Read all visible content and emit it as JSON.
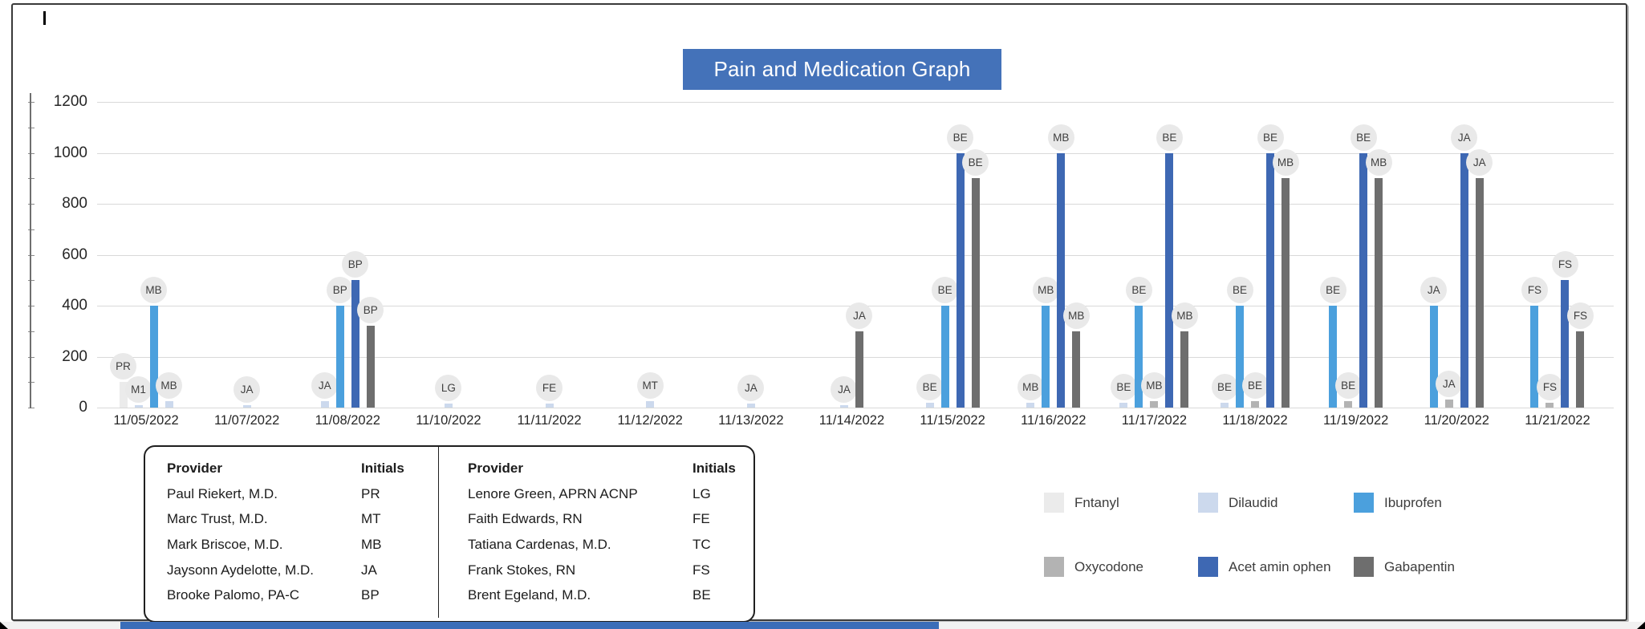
{
  "chart_data": {
    "type": "bar",
    "title": "Pain and Medication Graph",
    "xlabel": "",
    "ylabel": "",
    "ylim": [
      0,
      1200
    ],
    "y_ticks": [
      0,
      200,
      400,
      600,
      800,
      1000,
      1200
    ],
    "y_minor_step": 100,
    "grid": "horizontal",
    "legend_position": "bottom-right",
    "series_legend": [
      {
        "name": "Fntanyl",
        "color": "#ebebeb"
      },
      {
        "name": "Dilaudid",
        "color": "#ccd9ed"
      },
      {
        "name": "Ibuprofen",
        "color": "#4ba0dd"
      },
      {
        "name": "Oxycodone",
        "color": "#b3b3b3"
      },
      {
        "name": "Acet amin ophen",
        "color": "#3e68b3"
      },
      {
        "name": "Gabapentin",
        "color": "#6e6e6e"
      }
    ],
    "groups": [
      {
        "date": "11/05/2022",
        "bars": [
          {
            "series": "Fntanyl",
            "label": "PR",
            "value": 100
          },
          {
            "series": "Dilaudid",
            "label": "M1",
            "value": 10
          },
          {
            "series": "Ibuprofen",
            "label": "MB",
            "value": 400
          },
          {
            "series": "Dilaudid",
            "label": "MB",
            "value": 25
          }
        ]
      },
      {
        "date": "11/07/2022",
        "bars": [
          {
            "series": "Dilaudid",
            "label": "JA",
            "value": 10
          }
        ]
      },
      {
        "date": "11/08/2022",
        "bars": [
          {
            "series": "Dilaudid",
            "label": "JA",
            "value": 25
          },
          {
            "series": "Ibuprofen",
            "label": "BP",
            "value": 400
          },
          {
            "series": "Acet amin ophen",
            "label": "BP",
            "value": 500
          },
          {
            "series": "Gabapentin",
            "label": "BP",
            "value": 320
          }
        ]
      },
      {
        "date": "11/10/2022",
        "bars": [
          {
            "series": "Dilaudid",
            "label": "LG",
            "value": 15
          }
        ]
      },
      {
        "date": "11/11/2022",
        "bars": [
          {
            "series": "Dilaudid",
            "label": "FE",
            "value": 15
          }
        ]
      },
      {
        "date": "11/12/2022",
        "bars": [
          {
            "series": "Dilaudid",
            "label": "MT",
            "value": 25
          }
        ]
      },
      {
        "date": "11/13/2022",
        "bars": [
          {
            "series": "Dilaudid",
            "label": "JA",
            "value": 15
          }
        ]
      },
      {
        "date": "11/14/2022",
        "bars": [
          {
            "series": "Dilaudid",
            "label": "JA",
            "value": 10
          },
          {
            "series": "Gabapentin",
            "label": "JA",
            "value": 300
          }
        ]
      },
      {
        "date": "11/15/2022",
        "bars": [
          {
            "series": "Dilaudid",
            "label": "BE",
            "value": 20
          },
          {
            "series": "Ibuprofen",
            "label": "BE",
            "value": 400
          },
          {
            "series": "Acet amin ophen",
            "label": "BE",
            "value": 1000
          },
          {
            "series": "Gabapentin",
            "label": "BE",
            "value": 900
          }
        ]
      },
      {
        "date": "11/16/2022",
        "bars": [
          {
            "series": "Dilaudid",
            "label": "MB",
            "value": 20
          },
          {
            "series": "Ibuprofen",
            "label": "MB",
            "value": 400
          },
          {
            "series": "Acet amin ophen",
            "label": "MB",
            "value": 1000
          },
          {
            "series": "Gabapentin",
            "label": "MB",
            "value": 300
          }
        ]
      },
      {
        "date": "11/17/2022",
        "bars": [
          {
            "series": "Dilaudid",
            "label": "BE",
            "value": 20
          },
          {
            "series": "Ibuprofen",
            "label": "BE",
            "value": 400
          },
          {
            "series": "Oxycodone",
            "label": "MB",
            "value": 25
          },
          {
            "series": "Acet amin ophen",
            "label": "BE",
            "value": 1000
          },
          {
            "series": "Gabapentin",
            "label": "MB",
            "value": 300
          }
        ]
      },
      {
        "date": "11/18/2022",
        "bars": [
          {
            "series": "Dilaudid",
            "label": "BE",
            "value": 20
          },
          {
            "series": "Ibuprofen",
            "label": "BE",
            "value": 400
          },
          {
            "series": "Oxycodone",
            "label": "BE",
            "value": 25
          },
          {
            "series": "Acet amin ophen",
            "label": "BE",
            "value": 1000
          },
          {
            "series": "Gabapentin",
            "label": "MB",
            "value": 900
          }
        ]
      },
      {
        "date": "11/19/2022",
        "bars": [
          {
            "series": "Ibuprofen",
            "label": "BE",
            "value": 400
          },
          {
            "series": "Oxycodone",
            "label": "BE",
            "value": 25
          },
          {
            "series": "Acet amin ophen",
            "label": "BE",
            "value": 1000
          },
          {
            "series": "Gabapentin",
            "label": "MB",
            "value": 900
          }
        ]
      },
      {
        "date": "11/20/2022",
        "bars": [
          {
            "series": "Ibuprofen",
            "label": "JA",
            "value": 400
          },
          {
            "series": "Oxycodone",
            "label": "JA",
            "value": 30
          },
          {
            "series": "Acet amin ophen",
            "label": "JA",
            "value": 1000
          },
          {
            "series": "Gabapentin",
            "label": "JA",
            "value": 900
          }
        ]
      },
      {
        "date": "11/21/2022",
        "bars": [
          {
            "series": "Ibuprofen",
            "label": "FS",
            "value": 400
          },
          {
            "series": "Oxycodone",
            "label": "FS",
            "value": 20
          },
          {
            "series": "Acet amin ophen",
            "label": "FS",
            "value": 500
          },
          {
            "series": "Gabapentin",
            "label": "FS",
            "value": 300
          }
        ]
      }
    ]
  },
  "provider_tables": [
    {
      "headers": {
        "provider": "Provider",
        "initials": "Initials"
      },
      "rows": [
        {
          "provider": "Paul Riekert, M.D.",
          "initials": "PR"
        },
        {
          "provider": "Marc Trust, M.D.",
          "initials": "MT"
        },
        {
          "provider": "Mark Briscoe, M.D.",
          "initials": "MB"
        },
        {
          "provider": "Jaysonn Aydelotte, M.D.",
          "initials": "JA"
        },
        {
          "provider": "Brooke Palomo, PA-C",
          "initials": "BP"
        }
      ]
    },
    {
      "headers": {
        "provider": "Provider",
        "initials": "Initials"
      },
      "rows": [
        {
          "provider": "Lenore Green, APRN ACNP",
          "initials": "LG"
        },
        {
          "provider": "Faith Edwards, RN",
          "initials": "FE"
        },
        {
          "provider": "Tatiana Cardenas, M.D.",
          "initials": "TC"
        },
        {
          "provider": "Frank Stokes, RN",
          "initials": "FS"
        },
        {
          "provider": "Brent Egeland, M.D.",
          "initials": "BE"
        }
      ]
    }
  ]
}
